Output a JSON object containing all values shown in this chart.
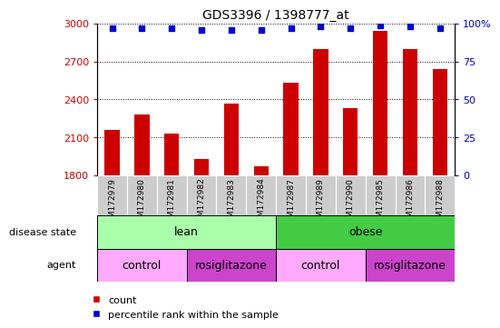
{
  "title": "GDS3396 / 1398777_at",
  "samples": [
    "GSM172979",
    "GSM172980",
    "GSM172981",
    "GSM172982",
    "GSM172983",
    "GSM172984",
    "GSM172987",
    "GSM172989",
    "GSM172990",
    "GSM172985",
    "GSM172986",
    "GSM172988"
  ],
  "counts": [
    2160,
    2280,
    2130,
    1930,
    2370,
    1870,
    2530,
    2800,
    2330,
    2940,
    2800,
    2640
  ],
  "percentiles": [
    97,
    97,
    97,
    96,
    96,
    96,
    97,
    98,
    97,
    99,
    98,
    97
  ],
  "ylim_left": [
    1800,
    3000
  ],
  "ylim_right": [
    0,
    100
  ],
  "yticks_left": [
    1800,
    2100,
    2400,
    2700,
    3000
  ],
  "yticks_right": [
    0,
    25,
    50,
    75,
    100
  ],
  "bar_color": "#cc0000",
  "dot_color": "#0000cc",
  "bar_width": 0.5,
  "lean_color": "#aaffaa",
  "obese_color": "#44cc44",
  "control_color": "#ffaaff",
  "rosi_color": "#cc44cc",
  "cell_bg_color": "#cccccc",
  "left_label_color": "#cc0000",
  "right_label_color": "#0000cc",
  "legend_items": [
    "count",
    "percentile rank within the sample"
  ],
  "disease_state_label": "disease state",
  "agent_label": "agent"
}
